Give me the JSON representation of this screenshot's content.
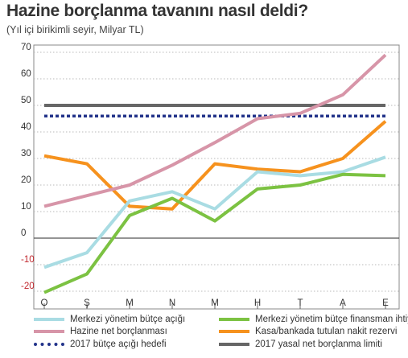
{
  "header": {
    "title": "Hazine borçlanma tavanını nasıl deldi?",
    "subtitle": "(Yıl içi birikimli seyir, Milyar TL)"
  },
  "chart_data": {
    "type": "line",
    "categories": [
      "O",
      "Ş",
      "M",
      "N",
      "M",
      "H",
      "T",
      "A",
      "E"
    ],
    "ylim": [
      -20,
      70
    ],
    "yticks": [
      -20,
      -10,
      0,
      10,
      20,
      30,
      40,
      50,
      60,
      70
    ],
    "grid": "dotted horizontal",
    "legend_placement": "bottom",
    "series": [
      {
        "name": "Merkezi yönetim bütçe açığı",
        "color": "#a9dce3",
        "values": [
          -11,
          -5.5,
          14,
          17.5,
          11,
          25,
          23.5,
          25,
          30.5
        ]
      },
      {
        "name": "Merkezi yönetim bütçe finansman ihtiyacı",
        "color": "#7cc242",
        "values": [
          -20.5,
          -13.5,
          8.5,
          15,
          6.5,
          18.5,
          20,
          24,
          23.5
        ]
      },
      {
        "name": "Hazine net borçlanması",
        "color": "#d795a8",
        "values": [
          12,
          16,
          20,
          27.5,
          36,
          45,
          47,
          54,
          69
        ]
      },
      {
        "name": "Kasa/bankada tutulan nakit rezervi",
        "color": "#f6921e",
        "values": [
          31,
          28,
          12,
          11,
          28,
          26,
          25,
          30,
          44
        ]
      },
      {
        "name": "2017 bütçe açığı hedefi",
        "color": "#22338a",
        "style": "dashed",
        "values": [
          46,
          46,
          46,
          46,
          46,
          46,
          46,
          46,
          46
        ]
      },
      {
        "name": "2017 yasal net borçlanma limiti",
        "color": "#666666",
        "values": [
          50,
          50,
          50,
          50,
          50,
          50,
          50,
          50,
          50
        ]
      }
    ]
  }
}
